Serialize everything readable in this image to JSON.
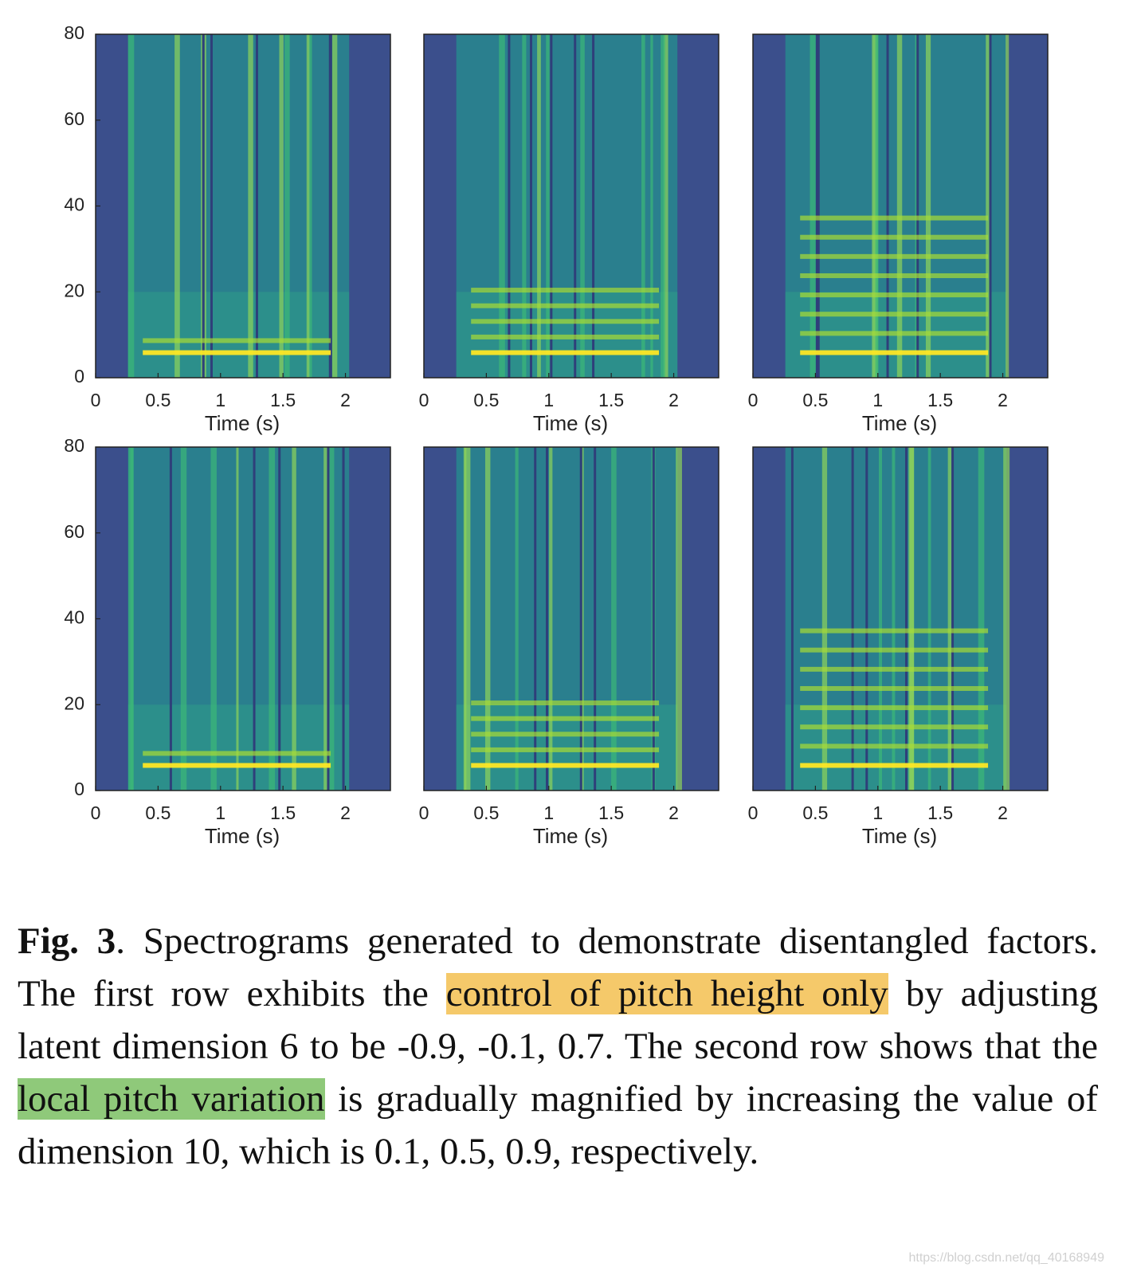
{
  "figure": {
    "panels": [
      {
        "xlim": [
          0,
          2.36
        ],
        "ylim": [
          0,
          80
        ],
        "xticks": [
          0,
          0.5,
          1,
          1.5,
          2
        ],
        "yticks": [
          0,
          20,
          40,
          60,
          80
        ],
        "xlabel": "Time (s)"
      },
      {
        "xlim": [
          0,
          2.36
        ],
        "ylim": [
          0,
          80
        ],
        "xticks": [
          0,
          0.5,
          1,
          1.5,
          2
        ],
        "xlabel": "Time (s)"
      },
      {
        "xlim": [
          0,
          2.36
        ],
        "ylim": [
          0,
          80
        ],
        "xticks": [
          0,
          0.5,
          1,
          1.5,
          2
        ],
        "xlabel": "Time (s)"
      },
      {
        "xlim": [
          0,
          2.36
        ],
        "ylim": [
          0,
          80
        ],
        "xticks": [
          0,
          0.5,
          1,
          1.5,
          2
        ],
        "yticks": [
          0,
          20,
          40,
          60,
          80
        ],
        "xlabel": "Time (s)"
      },
      {
        "xlim": [
          0,
          2.36
        ],
        "ylim": [
          0,
          80
        ],
        "xticks": [
          0,
          0.5,
          1,
          1.5,
          2
        ],
        "xlabel": "Time (s)"
      },
      {
        "xlim": [
          0,
          2.36
        ],
        "ylim": [
          0,
          80
        ],
        "xticks": [
          0,
          0.5,
          1,
          1.5,
          2
        ],
        "xlabel": "Time (s)"
      }
    ]
  },
  "caption": {
    "label": "Fig. 3",
    "parts": [
      ". Spectrograms generated to demonstrate disentangled factors. The first row exhibits the ",
      "control of pitch height only",
      " by adjusting latent dimension 6 to be -0.9, -0.1, 0.7.  The second row shows that the ",
      "local pitch variation",
      " is gradually magnified by increasing the value of dimension 10, which is 0.1, 0.5, 0.9, respectively."
    ]
  },
  "watermark": "https://blog.csdn.net/qq_40168949"
}
